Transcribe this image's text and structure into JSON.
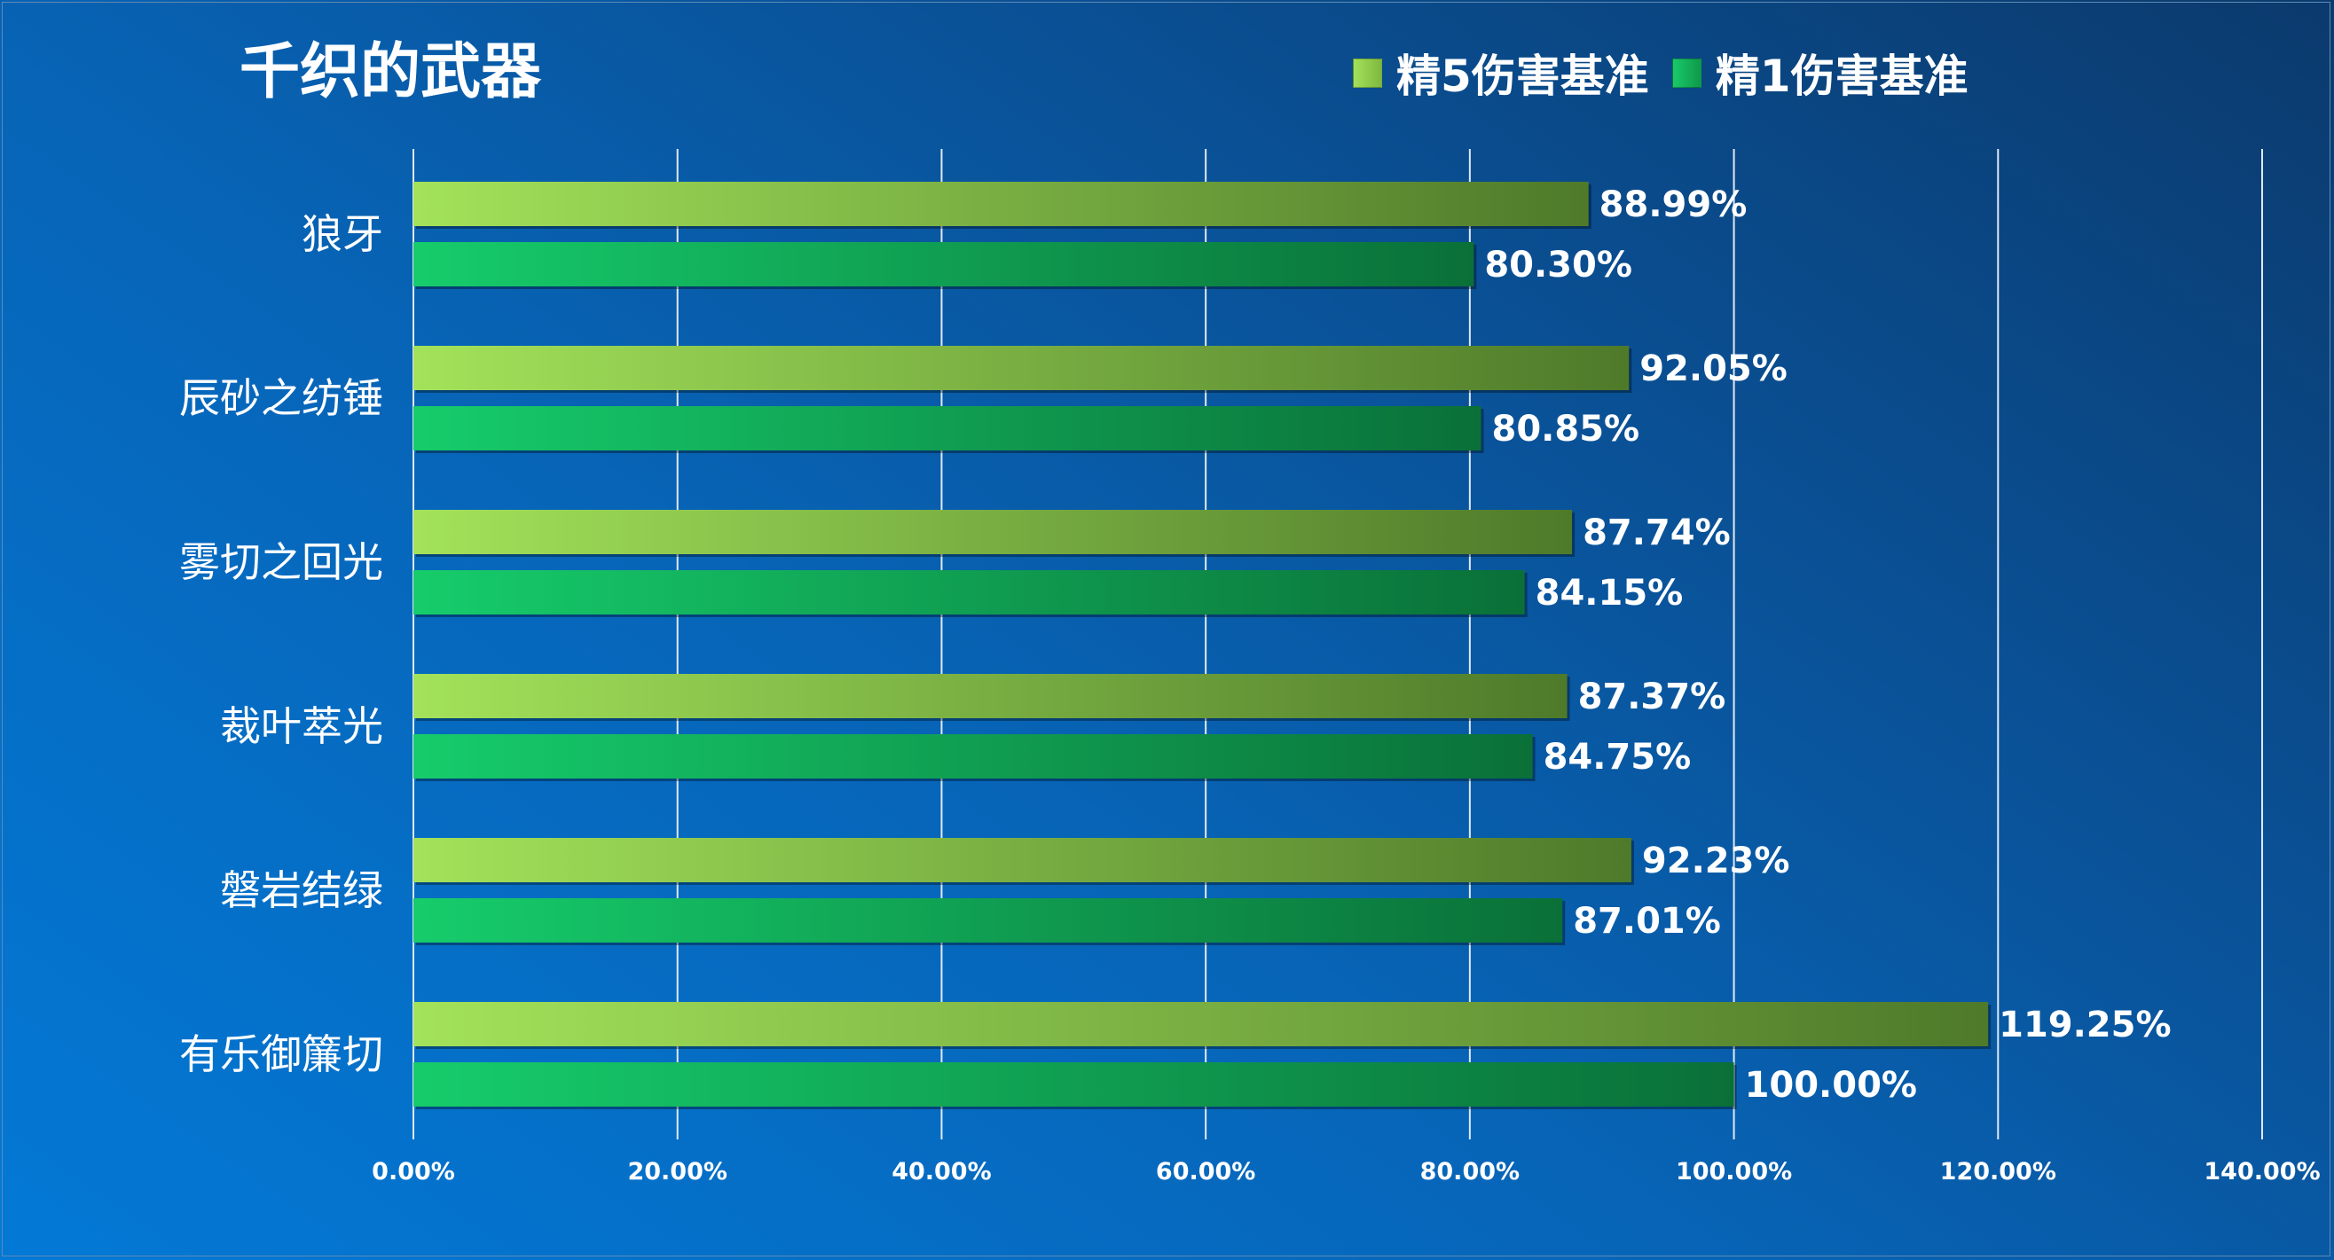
{
  "chart_data": {
    "type": "bar",
    "orientation": "horizontal",
    "title": "千织的武器",
    "categories": [
      "狼牙",
      "辰砂之纺锤",
      "雾切之回光",
      "裁叶萃光",
      "磐岩结绿",
      "有乐御簾切"
    ],
    "series": [
      {
        "name": "精5伤害基准",
        "values": [
          88.99,
          92.05,
          87.74,
          87.37,
          92.23,
          119.25
        ],
        "value_labels": [
          "88.99%",
          "92.05%",
          "87.74%",
          "87.37%",
          "92.23%",
          "119.25%"
        ]
      },
      {
        "name": "精1伤害基准",
        "values": [
          80.3,
          80.85,
          84.15,
          84.75,
          87.01,
          100.0
        ],
        "value_labels": [
          "80.30%",
          "80.85%",
          "84.15%",
          "84.75%",
          "87.01%",
          "100.00%"
        ]
      }
    ],
    "xlim": [
      0,
      140
    ],
    "x_ticks": [
      0,
      20,
      40,
      60,
      80,
      100,
      120,
      140
    ],
    "x_tick_labels": [
      "0.00%",
      "20.00%",
      "40.00%",
      "60.00%",
      "80.00%",
      "100.00%",
      "120.00%",
      "140.00%"
    ],
    "grid": true,
    "legend_position": "top-right",
    "colors": {
      "series_1": [
        "#a3e25a",
        "#4e7a2a"
      ],
      "series_2": [
        "#16cc6b",
        "#0a7038"
      ],
      "gridline": "#dfe9f3",
      "text": "#ffffff"
    }
  }
}
